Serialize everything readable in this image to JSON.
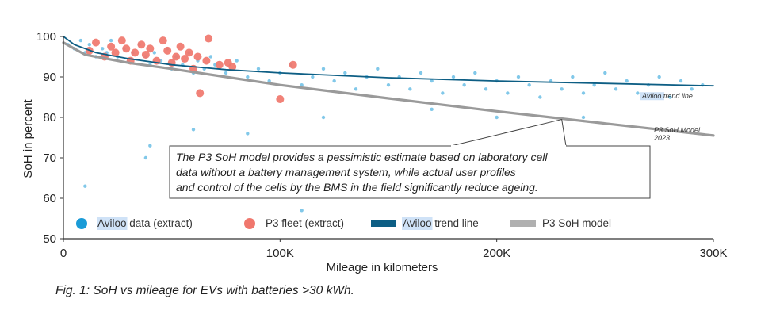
{
  "chart_data": {
    "type": "scatter",
    "xlabel": "Mileage in kilometers",
    "ylabel": "SoH in percent",
    "xlim": [
      0,
      300000
    ],
    "ylim": [
      50,
      100
    ],
    "x_ticks": [
      {
        "value": 0,
        "label": "0"
      },
      {
        "value": 100000,
        "label": "100K"
      },
      {
        "value": 200000,
        "label": "200K"
      },
      {
        "value": 300000,
        "label": "300K"
      }
    ],
    "y_ticks": [
      {
        "value": 50,
        "label": "50"
      },
      {
        "value": 60,
        "label": "60"
      },
      {
        "value": 70,
        "label": "70"
      },
      {
        "value": 80,
        "label": "80"
      },
      {
        "value": 90,
        "label": "90"
      },
      {
        "value": 100,
        "label": "100"
      }
    ],
    "grid": false,
    "legend_position": "bottom",
    "series": [
      {
        "name": "Aviloo data (extract)",
        "kind": "scatter",
        "color": "#1a9bd7",
        "points": [
          [
            2000,
            98
          ],
          [
            5000,
            97
          ],
          [
            8000,
            99
          ],
          [
            10000,
            96
          ],
          [
            12000,
            98
          ],
          [
            15000,
            95
          ],
          [
            18000,
            97
          ],
          [
            20000,
            96
          ],
          [
            22000,
            99
          ],
          [
            25000,
            95
          ],
          [
            28000,
            97
          ],
          [
            30000,
            94
          ],
          [
            32000,
            96
          ],
          [
            35000,
            98
          ],
          [
            38000,
            95
          ],
          [
            40000,
            93
          ],
          [
            42000,
            96
          ],
          [
            45000,
            94
          ],
          [
            48000,
            97
          ],
          [
            50000,
            92
          ],
          [
            52000,
            95
          ],
          [
            55000,
            93
          ],
          [
            58000,
            96
          ],
          [
            60000,
            91
          ],
          [
            62000,
            94
          ],
          [
            65000,
            92
          ],
          [
            68000,
            95
          ],
          [
            70000,
            93
          ],
          [
            75000,
            91
          ],
          [
            80000,
            94
          ],
          [
            85000,
            90
          ],
          [
            90000,
            92
          ],
          [
            95000,
            89
          ],
          [
            100000,
            91
          ],
          [
            105000,
            93
          ],
          [
            110000,
            88
          ],
          [
            115000,
            90
          ],
          [
            120000,
            92
          ],
          [
            125000,
            89
          ],
          [
            130000,
            91
          ],
          [
            135000,
            87
          ],
          [
            140000,
            90
          ],
          [
            145000,
            92
          ],
          [
            150000,
            88
          ],
          [
            155000,
            90
          ],
          [
            160000,
            87
          ],
          [
            165000,
            91
          ],
          [
            170000,
            89
          ],
          [
            175000,
            86
          ],
          [
            180000,
            90
          ],
          [
            185000,
            88
          ],
          [
            190000,
            91
          ],
          [
            195000,
            87
          ],
          [
            200000,
            89
          ],
          [
            205000,
            86
          ],
          [
            210000,
            90
          ],
          [
            215000,
            88
          ],
          [
            220000,
            85
          ],
          [
            225000,
            89
          ],
          [
            230000,
            87
          ],
          [
            235000,
            90
          ],
          [
            240000,
            86
          ],
          [
            245000,
            88
          ],
          [
            250000,
            91
          ],
          [
            255000,
            87
          ],
          [
            260000,
            89
          ],
          [
            265000,
            86
          ],
          [
            270000,
            88
          ],
          [
            275000,
            90
          ],
          [
            280000,
            85
          ],
          [
            285000,
            89
          ],
          [
            290000,
            87
          ],
          [
            295000,
            88
          ],
          [
            10000,
            63
          ],
          [
            40000,
            73
          ],
          [
            60000,
            77
          ],
          [
            110000,
            57
          ],
          [
            38000,
            70
          ],
          [
            85000,
            76
          ],
          [
            120000,
            80
          ],
          [
            170000,
            82
          ],
          [
            200000,
            80
          ],
          [
            240000,
            80
          ]
        ]
      },
      {
        "name": "P3 fleet (extract)",
        "kind": "scatter",
        "color": "#f0776d",
        "points": [
          [
            12000,
            96.5
          ],
          [
            15000,
            98.5
          ],
          [
            19000,
            95
          ],
          [
            22000,
            97.5
          ],
          [
            24000,
            96
          ],
          [
            27000,
            99
          ],
          [
            29000,
            97
          ],
          [
            31000,
            94
          ],
          [
            33000,
            96
          ],
          [
            36000,
            98
          ],
          [
            38000,
            95.5
          ],
          [
            40000,
            97
          ],
          [
            43000,
            94
          ],
          [
            46000,
            99
          ],
          [
            48000,
            96.5
          ],
          [
            50000,
            93.5
          ],
          [
            52000,
            95
          ],
          [
            54000,
            97.5
          ],
          [
            56000,
            94.5
          ],
          [
            58000,
            96
          ],
          [
            60000,
            92
          ],
          [
            62000,
            95
          ],
          [
            63000,
            86
          ],
          [
            66000,
            94
          ],
          [
            67000,
            99.5
          ],
          [
            72000,
            93
          ],
          [
            76000,
            93.5
          ],
          [
            78000,
            92.5
          ],
          [
            100000,
            84.5
          ],
          [
            106000,
            93
          ]
        ]
      },
      {
        "name": "Aviloo trend line",
        "kind": "line",
        "color": "#0d5e84",
        "label": "Aviloo trend line",
        "points": [
          [
            0,
            100
          ],
          [
            5000,
            98
          ],
          [
            15000,
            96
          ],
          [
            30000,
            94.5
          ],
          [
            50000,
            93
          ],
          [
            75000,
            91.8
          ],
          [
            100000,
            91
          ],
          [
            150000,
            89.8
          ],
          [
            200000,
            89
          ],
          [
            250000,
            88.4
          ],
          [
            300000,
            87.8
          ]
        ]
      },
      {
        "name": "P3 SoH model",
        "kind": "line",
        "color": "#9a9a9a",
        "label": "P3 SoH Model\n2023",
        "points": [
          [
            0,
            98.5
          ],
          [
            10000,
            95.5
          ],
          [
            30000,
            93.5
          ],
          [
            50000,
            92
          ],
          [
            75000,
            90
          ],
          [
            100000,
            88
          ],
          [
            150000,
            84.7
          ],
          [
            200000,
            81.5
          ],
          [
            250000,
            78.5
          ],
          [
            300000,
            75.5
          ]
        ]
      }
    ],
    "annotation": {
      "lines": [
        "The P3 SoH model provides a pessimistic estimate based on laboratory cell",
        "data without a battery management system, while actual user profiles",
        "and control of the cells by the BMS in the field significantly reduce ageing."
      ],
      "arrow_to": [
        230000,
        79.5
      ]
    }
  },
  "legend": [
    {
      "label": "Aviloo data (extract)",
      "highlight": "Aviloo",
      "rest": " data (extract)",
      "shape": "dot",
      "color": "#1a9bd7"
    },
    {
      "label": "P3 fleet (extract)",
      "highlight": "",
      "rest": "P3 fleet (extract)",
      "shape": "dot",
      "color": "#f0776d"
    },
    {
      "label": "Aviloo trend line",
      "highlight": "Aviloo",
      "rest": " trend line",
      "shape": "bar",
      "color": "#0d5e84"
    },
    {
      "label": "P3 SoH model",
      "highlight": "",
      "rest": "P3 SoH model",
      "shape": "bar",
      "color": "#b0b0b0"
    }
  ],
  "caption": "Fig. 1: SoH vs mileage for EVs with batteries >30 kWh."
}
